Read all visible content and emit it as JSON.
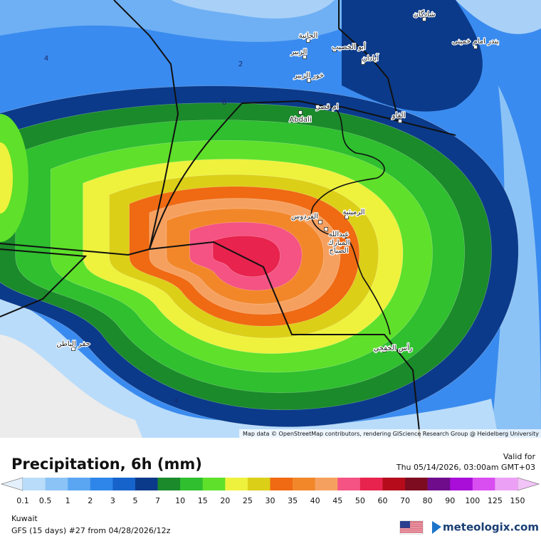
{
  "header": {
    "title": "Precipitation, 6h (mm)",
    "valid_label": "Valid for",
    "valid_time": "Thu 05/14/2026, 03:00am GMT+03"
  },
  "footer": {
    "region": "Kuwait",
    "model": "GFS (15 days) #27 from  04/28/2026/12z",
    "brand": "meteologix.com"
  },
  "map": {
    "attribution": "Map data © OpenStreetMap contributors, rendering GIScience Research Group @ Heidelberg University",
    "places": [
      "شادگان",
      "بندر امام خمینی",
      "الجانبة",
      "أبو الخصيب",
      "الزبير",
      "آبادان",
      "خور الزبير",
      "ام قصر",
      "Abdali",
      "الفاو",
      "الرميثية",
      "الفردوس",
      "عبدالله",
      "المبارك",
      "الصباح",
      "حفر الباطن",
      "رأس الخفجي"
    ],
    "contour_labels": [
      "4",
      "2",
      "6",
      "4"
    ]
  },
  "legend": {
    "labels": [
      0.1,
      0.5,
      1,
      2,
      3,
      5,
      7,
      10,
      15,
      20,
      25,
      30,
      35,
      40,
      45,
      50,
      60,
      70,
      80,
      90,
      100,
      125,
      150
    ],
    "colors": [
      "#b9dcfa",
      "#8cc3f6",
      "#5aa6f2",
      "#2f86ea",
      "#1663cc",
      "#0b3a8a",
      "#1b8a2a",
      "#2fbf2f",
      "#5fe02a",
      "#eef23c",
      "#dccf17",
      "#ef6a12",
      "#f2872a",
      "#f6a060",
      "#f45383",
      "#e8234e",
      "#b50b1b",
      "#7d0c20",
      "#6e0c8c",
      "#a80ed8",
      "#d94ef0",
      "#eca0f5"
    ],
    "under_color": "#e4f1fd",
    "over_color": "#f2c4f7"
  }
}
